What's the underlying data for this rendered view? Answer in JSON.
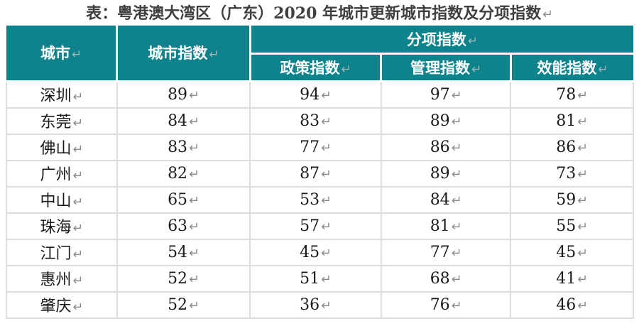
{
  "title": {
    "text": "表：粤港澳大湾区（广东）2020 年城市更新城市指数及分项指数"
  },
  "marks": {
    "return": "↵"
  },
  "colors": {
    "header_bg": "#0E838C",
    "body_border": "#DCDCDC",
    "return_mark": "#8C8C8C",
    "title_text": "#3F3F3F"
  },
  "table": {
    "header": {
      "city": "城市",
      "city_index": "城市指数",
      "sub_index_group": "分项指数",
      "sub_columns": [
        "政策指数",
        "管理指数",
        "效能指数"
      ]
    },
    "rows": [
      {
        "city": "深圳",
        "city_index": 89,
        "policy": 94,
        "management": 97,
        "efficiency": 78
      },
      {
        "city": "东莞",
        "city_index": 84,
        "policy": 83,
        "management": 89,
        "efficiency": 81
      },
      {
        "city": "佛山",
        "city_index": 83,
        "policy": 77,
        "management": 86,
        "efficiency": 86
      },
      {
        "city": "广州",
        "city_index": 82,
        "policy": 87,
        "management": 89,
        "efficiency": 73
      },
      {
        "city": "中山",
        "city_index": 65,
        "policy": 53,
        "management": 84,
        "efficiency": 59
      },
      {
        "city": "珠海",
        "city_index": 63,
        "policy": 57,
        "management": 81,
        "efficiency": 55
      },
      {
        "city": "江门",
        "city_index": 54,
        "policy": 45,
        "management": 77,
        "efficiency": 45
      },
      {
        "city": "惠州",
        "city_index": 52,
        "policy": 51,
        "management": 68,
        "efficiency": 41
      },
      {
        "city": "肇庆",
        "city_index": 52,
        "policy": 36,
        "management": 76,
        "efficiency": 46
      }
    ]
  }
}
